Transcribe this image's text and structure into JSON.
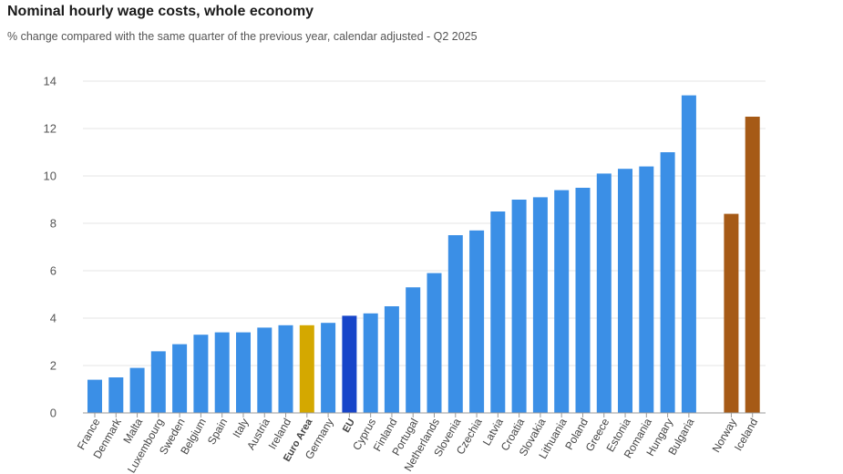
{
  "chart_data": {
    "type": "bar",
    "title": "Nominal hourly wage costs, whole economy",
    "subtitle": "% change compared with the same quarter of the previous year, calendar adjusted - Q2 2025",
    "xlabel": "",
    "ylabel": "",
    "ylim": [
      0,
      14
    ],
    "yticks": [
      0,
      2,
      4,
      6,
      8,
      10,
      12,
      14
    ],
    "grid": true,
    "legend": "none",
    "categories": [
      "France",
      "Denmark",
      "Malta",
      "Luxembourg",
      "Sweden",
      "Belgium",
      "Spain",
      "Italy",
      "Austria",
      "Ireland",
      "Euro Area",
      "Germany",
      "EU",
      "Cyprus",
      "Finland",
      "Portugal",
      "Netherlands",
      "Slovenia",
      "Czechia",
      "Latvia",
      "Croatia",
      "Slovakia",
      "Lithuania",
      "Poland",
      "Greece",
      "Estonia",
      "Romania",
      "Hungary",
      "Bulgaria",
      "",
      "Norway",
      "Iceland"
    ],
    "values": [
      1.4,
      1.5,
      1.9,
      2.6,
      2.9,
      3.3,
      3.4,
      3.4,
      3.6,
      3.7,
      3.7,
      3.8,
      4.1,
      4.2,
      4.5,
      5.3,
      5.9,
      7.5,
      7.7,
      8.5,
      9.0,
      9.1,
      9.4,
      9.5,
      10.1,
      10.3,
      10.4,
      11.0,
      13.4,
      null,
      8.4,
      12.5
    ],
    "groups": [
      "member",
      "member",
      "member",
      "member",
      "member",
      "member",
      "member",
      "member",
      "member",
      "member",
      "euro-area",
      "member",
      "eu",
      "member",
      "member",
      "member",
      "member",
      "member",
      "member",
      "member",
      "member",
      "member",
      "member",
      "member",
      "member",
      "member",
      "member",
      "member",
      "member",
      "gap",
      "efta",
      "efta"
    ],
    "bold_labels": [
      "Euro Area",
      "EU"
    ],
    "colors": {
      "member": "#3b8fe6",
      "euro-area": "#d4a800",
      "eu": "#1745c9",
      "efta": "#a65a16",
      "grid": "#e6e6e6",
      "axis": "#999999"
    }
  }
}
